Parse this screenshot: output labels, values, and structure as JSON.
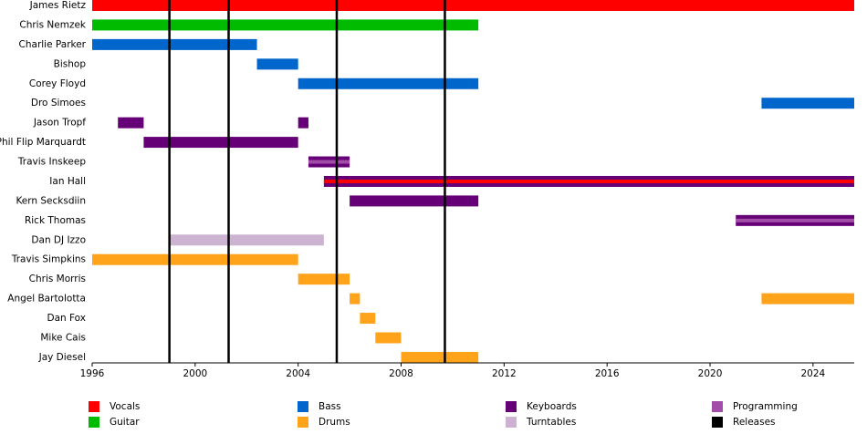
{
  "chart_data": {
    "type": "timeline",
    "xlim": [
      1996,
      2025.6
    ],
    "xticks": [
      1996,
      2000,
      2004,
      2008,
      2012,
      2016,
      2020,
      2024
    ],
    "roles": [
      {
        "name": "Vocals",
        "color": "#ff0000"
      },
      {
        "name": "Guitar",
        "color": "#00bb00"
      },
      {
        "name": "Bass",
        "color": "#0066cc"
      },
      {
        "name": "Drums",
        "color": "#ffa31a"
      },
      {
        "name": "Keyboards",
        "color": "#660077"
      },
      {
        "name": "Turntables",
        "color": "#ccb3d1"
      },
      {
        "name": "Programming",
        "color": "#a24ea8"
      }
    ],
    "releases": {
      "name": "Releases",
      "color": "#000000",
      "values": [
        1999,
        2001.3,
        2005.5,
        2009.7
      ]
    },
    "members": [
      {
        "name": "James Rietz",
        "periods": [
          {
            "role": "Vocals",
            "start": 1996,
            "end": 2025.6
          }
        ]
      },
      {
        "name": "Chris Nemzek",
        "periods": [
          {
            "role": "Guitar",
            "start": 1996,
            "end": 2011
          }
        ]
      },
      {
        "name": "Charlie Parker",
        "periods": [
          {
            "role": "Bass",
            "start": 1996,
            "end": 2002.4
          }
        ]
      },
      {
        "name": "Bishop",
        "periods": [
          {
            "role": "Bass",
            "start": 2002.4,
            "end": 2004
          }
        ]
      },
      {
        "name": "Corey Floyd",
        "periods": [
          {
            "role": "Bass",
            "start": 2004,
            "end": 2011
          }
        ]
      },
      {
        "name": "Dro Simoes",
        "periods": [
          {
            "role": "Bass",
            "start": 2022,
            "end": 2025.6
          }
        ]
      },
      {
        "name": "Jason Tropf",
        "periods": [
          {
            "role": "Keyboards",
            "start": 1997,
            "end": 1998
          },
          {
            "role": "Keyboards",
            "start": 2004,
            "end": 2004.4
          }
        ]
      },
      {
        "name": "Phil Flip Marquardt",
        "periods": [
          {
            "role": "Keyboards",
            "start": 1998,
            "end": 2004
          }
        ]
      },
      {
        "name": "Travis Inskeep",
        "periods": [
          {
            "role": "Keyboards",
            "secondary": "Programming",
            "start": 2004.4,
            "end": 2006
          }
        ]
      },
      {
        "name": "Ian Hall",
        "periods": [
          {
            "role": "Keyboards",
            "secondary": "Vocals",
            "start": 2005,
            "end": 2025.6
          }
        ]
      },
      {
        "name": "Kern Secksdiin",
        "periods": [
          {
            "role": "Keyboards",
            "start": 2006,
            "end": 2011
          }
        ]
      },
      {
        "name": "Rick Thomas",
        "periods": [
          {
            "role": "Keyboards",
            "secondary": "Programming",
            "start": 2021,
            "end": 2025.6
          }
        ]
      },
      {
        "name": "Dan DJ Izzo",
        "periods": [
          {
            "role": "Turntables",
            "start": 1999,
            "end": 2005
          }
        ]
      },
      {
        "name": "Travis Simpkins",
        "periods": [
          {
            "role": "Drums",
            "start": 1996,
            "end": 2004
          }
        ]
      },
      {
        "name": "Chris Morris",
        "periods": [
          {
            "role": "Drums",
            "start": 2004,
            "end": 2006
          }
        ]
      },
      {
        "name": "Angel Bartolotta",
        "periods": [
          {
            "role": "Drums",
            "start": 2006,
            "end": 2006.4
          },
          {
            "role": "Drums",
            "start": 2022,
            "end": 2025.6
          }
        ]
      },
      {
        "name": "Dan Fox",
        "periods": [
          {
            "role": "Drums",
            "start": 2006.4,
            "end": 2007
          }
        ]
      },
      {
        "name": "Mike Cais",
        "periods": [
          {
            "role": "Drums",
            "start": 2007,
            "end": 2008
          }
        ]
      },
      {
        "name": "Jay Diesel",
        "periods": [
          {
            "role": "Drums",
            "start": 2008,
            "end": 2011
          }
        ]
      }
    ]
  }
}
